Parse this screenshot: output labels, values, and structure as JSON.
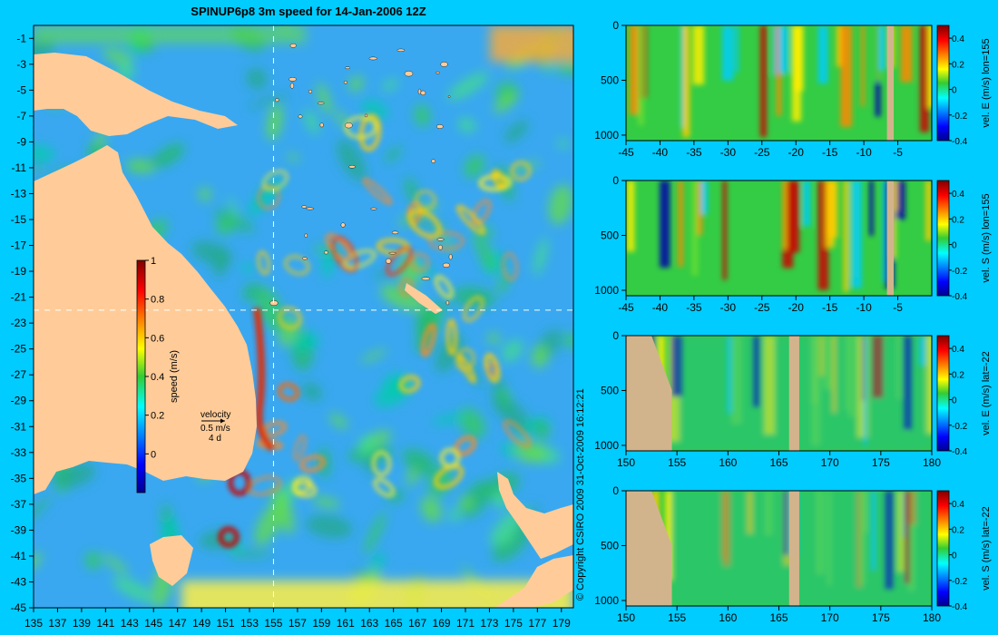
{
  "title": "SPINUP6p8 3m speed for 14-Jan-2006 12Z",
  "copyright": "© Copyright CSIRO 2009   31-Oct-2009 16:12:21",
  "colors": {
    "background": "#00ccff",
    "land": "#ffcc99",
    "section_land": "#d2b48c",
    "crosshair": "#ffffff"
  },
  "map": {
    "x_ticks": [
      "135",
      "137",
      "139",
      "141",
      "143",
      "145",
      "147",
      "149",
      "151",
      "153",
      "155",
      "157",
      "159",
      "161",
      "163",
      "165",
      "167",
      "169",
      "171",
      "173",
      "175",
      "177",
      "179"
    ],
    "y_ticks": [
      "-1",
      "-3",
      "-5",
      "-7",
      "-9",
      "-11",
      "-13",
      "-15",
      "-17",
      "-19",
      "-21",
      "-23",
      "-25",
      "-27",
      "-29",
      "-31",
      "-33",
      "-35",
      "-37",
      "-39",
      "-41",
      "-43",
      "-45"
    ],
    "xlim": [
      135,
      180
    ],
    "ylim": [
      -45,
      0
    ],
    "crosshair_lon": 155,
    "crosshair_lat": -22,
    "colorbar": {
      "label": "speed (m/s)",
      "ticks": [
        "1",
        "0.8",
        "0.6",
        "0.4",
        "0.2",
        "0"
      ],
      "range": [
        -0.2,
        1
      ]
    },
    "velocity_legend": {
      "title": "velocity",
      "speed": "0.5 m/s",
      "days": "4 d"
    }
  },
  "chart_data": [
    {
      "type": "heatmap",
      "title": "SPINUP6p8 3m speed for 14-Jan-2006 12Z",
      "xlim": [
        135,
        180
      ],
      "ylim": [
        -45,
        0
      ],
      "colorbar_label": "speed (m/s)",
      "colorbar_range": [
        -0.2,
        1
      ]
    },
    {
      "type": "heatmap",
      "label": "vel. E (m/s) lon=155",
      "x_ticks": [
        "-45",
        "-40",
        "-35",
        "-30",
        "-25",
        "-20",
        "-15",
        "-10",
        "-5"
      ],
      "y_ticks": [
        "0",
        "500",
        "1000"
      ],
      "xlim": [
        -45,
        0
      ],
      "ylim": [
        1050,
        0
      ],
      "colorbar_ticks": [
        "0.4",
        "0.2",
        "0",
        "-0.2",
        "-0.4"
      ],
      "colorbar_range": [
        -0.4,
        0.5
      ]
    },
    {
      "type": "heatmap",
      "label": "vel. S (m/s) lon=155",
      "x_ticks": [
        "-45",
        "-40",
        "-35",
        "-30",
        "-25",
        "-20",
        "-15",
        "-10",
        "-5"
      ],
      "y_ticks": [
        "0",
        "500",
        "1000"
      ],
      "xlim": [
        -45,
        0
      ],
      "ylim": [
        1050,
        0
      ],
      "colorbar_ticks": [
        "0.4",
        "0.2",
        "0",
        "-0.2",
        "-0.4"
      ],
      "colorbar_range": [
        -0.4,
        0.5
      ]
    },
    {
      "type": "heatmap",
      "label": "vel. E (m/s) lat=-22",
      "x_ticks": [
        "150",
        "155",
        "160",
        "165",
        "170",
        "175",
        "180"
      ],
      "y_ticks": [
        "0",
        "500",
        "1000"
      ],
      "xlim": [
        150,
        180
      ],
      "ylim": [
        1050,
        0
      ],
      "colorbar_ticks": [
        "0.4",
        "0.2",
        "0",
        "-0.2",
        "-0.4"
      ],
      "colorbar_range": [
        -0.4,
        0.5
      ]
    },
    {
      "type": "heatmap",
      "label": "vel. S (m/s) lat=-22",
      "x_ticks": [
        "150",
        "155",
        "160",
        "165",
        "170",
        "175",
        "180"
      ],
      "y_ticks": [
        "0",
        "500",
        "1000"
      ],
      "xlim": [
        150,
        180
      ],
      "ylim": [
        1050,
        0
      ],
      "colorbar_ticks": [
        "0.4",
        "0.2",
        "0",
        "-0.2",
        "-0.4"
      ],
      "colorbar_range": [
        -0.4,
        0.5
      ]
    }
  ]
}
